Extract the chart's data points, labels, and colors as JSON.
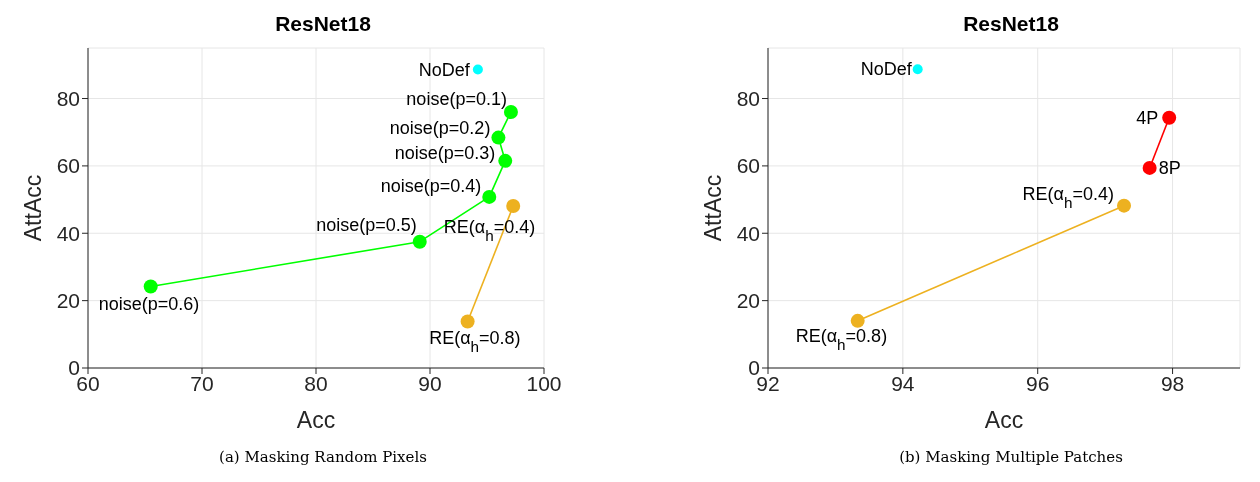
{
  "chart_data": [
    {
      "type": "line",
      "title": "ResNet18",
      "xlabel": "Acc",
      "ylabel": "AttAcc",
      "xlim": [
        60,
        100
      ],
      "xticks": [
        60,
        70,
        80,
        90,
        100
      ],
      "ylim": [
        0,
        95
      ],
      "yticks": [
        0,
        20,
        40,
        60,
        80
      ],
      "grid": true,
      "legend": false,
      "marker": "circle",
      "line_style": "solid",
      "series": [
        {
          "type": "line",
          "color": "#00ff00",
          "x": [
            97.1,
            96.0,
            96.6,
            95.2,
            89.1,
            65.5
          ],
          "values": [
            76.0,
            68.4,
            61.5,
            50.8,
            37.5,
            24.2
          ]
        },
        {
          "type": "line",
          "color": "#edb120",
          "x": [
            97.3,
            93.3
          ],
          "values": [
            48.1,
            13.8
          ]
        },
        {
          "type": "scatter",
          "color": "#00ffff",
          "x": [
            94.2
          ],
          "values": [
            88.6
          ]
        }
      ],
      "annotations": [
        {
          "text": "NoDef",
          "x": 94.2,
          "y": 88.6
        },
        {
          "text": "noise(p=0.1)",
          "x": 97.1,
          "y": 76.0
        },
        {
          "text": "noise(p=0.2)",
          "x": 96.0,
          "y": 68.4
        },
        {
          "text": "noise(p=0.3)",
          "x": 96.6,
          "y": 61.5
        },
        {
          "text": "noise(p=0.4)",
          "x": 95.2,
          "y": 50.8
        },
        {
          "text": "noise(p=0.5)",
          "x": 89.1,
          "y": 37.5
        },
        {
          "text": "noise(p=0.6)",
          "x": 65.5,
          "y": 24.2
        },
        {
          "text": "RE(α$_{h}$=0.4)",
          "x": 97.3,
          "y": 48.1
        },
        {
          "text": "RE(α$_{h}$=0.8)",
          "x": 93.3,
          "y": 13.8
        },
        "(a) Masking Random Pixels"
      ]
    },
    {
      "type": "line",
      "title": "ResNet18",
      "xlabel": "Acc",
      "ylabel": "AttAcc",
      "xlim": [
        92,
        99
      ],
      "xticks": [
        92,
        94,
        96,
        98
      ],
      "ylim": [
        0,
        95
      ],
      "yticks": [
        0,
        20,
        40,
        60,
        80
      ],
      "grid": true,
      "legend": false,
      "marker": "circle",
      "line_style": "solid",
      "series": [
        {
          "type": "line",
          "color": "#ff0000",
          "x": [
            97.95,
            97.66
          ],
          "values": [
            74.3,
            59.4
          ]
        },
        {
          "type": "line",
          "color": "#edb120",
          "x": [
            97.28,
            93.33
          ],
          "values": [
            48.2,
            14.0
          ]
        },
        {
          "type": "scatter",
          "color": "#00ffff",
          "x": [
            94.22
          ],
          "values": [
            88.7
          ]
        }
      ],
      "annotations": [
        {
          "text": "NoDef",
          "x": 94.22,
          "y": 88.7
        },
        {
          "text": "4P",
          "x": 97.95,
          "y": 74.3
        },
        {
          "text": "8P",
          "x": 97.66,
          "y": 59.4
        },
        {
          "text": "RE(α$_{h}$=0.4)",
          "x": 97.28,
          "y": 48.2
        },
        {
          "text": "RE(α$_{h}$=0.8)",
          "x": 93.33,
          "y": 14.0
        },
        "(b) Masking Multiple Patches"
      ]
    }
  ]
}
